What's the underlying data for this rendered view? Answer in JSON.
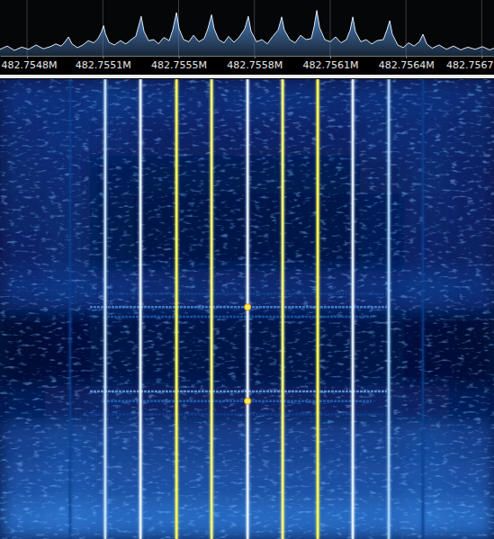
{
  "chart_data": [
    {
      "type": "area",
      "color": "#4f86c6",
      "grid": true,
      "tick_labels": "x",
      "xlim": [
        482.754695,
        482.756794
      ],
      "ylim": [
        0,
        1
      ],
      "xticks": [
        {
          "value": 482.75481,
          "label": "482.7548M"
        },
        {
          "value": 482.755132,
          "label": "482.7551M"
        },
        {
          "value": 482.755454,
          "label": "482.7555M"
        },
        {
          "value": 482.755776,
          "label": "482.7558M"
        },
        {
          "value": 482.756098,
          "label": "482.7561M"
        },
        {
          "value": 482.75642,
          "label": "482.7564M"
        },
        {
          "value": 482.756742,
          "label": "482.7567"
        }
      ],
      "x": [
        482.754695,
        482.754726,
        482.754756,
        482.754787,
        482.754817,
        482.754848,
        482.754879,
        482.754909,
        482.754932,
        482.754955,
        482.75497,
        482.754986,
        482.755001,
        482.755024,
        482.755047,
        482.75507,
        482.755093,
        482.755112,
        482.755127,
        482.755135,
        482.755142,
        482.755158,
        482.755181,
        482.755207,
        482.75523,
        482.755253,
        482.755272,
        482.755284,
        482.755295,
        482.755307,
        482.755326,
        482.755349,
        482.755368,
        482.755391,
        482.755414,
        482.755429,
        482.755445,
        482.755456,
        482.755475,
        482.755498,
        482.755517,
        482.75554,
        482.755563,
        482.755578,
        482.755594,
        482.755605,
        482.755624,
        482.755647,
        482.755666,
        482.755689,
        482.755712,
        482.755735,
        482.75575,
        482.755762,
        482.755785,
        482.755808,
        482.755831,
        482.755854,
        482.755877,
        482.755892,
        482.755903,
        482.755926,
        482.755949,
        482.755972,
        482.755995,
        482.756018,
        482.75603,
        482.756041,
        482.756053,
        482.756075,
        482.756098,
        482.756121,
        482.756144,
        482.756167,
        482.756183,
        482.756194,
        482.756205,
        482.756228,
        482.756251,
        482.756274,
        482.756297,
        482.756324,
        482.756339,
        482.756351,
        482.756362,
        482.756385,
        482.756408,
        482.756431,
        482.756454,
        482.756477,
        482.756492,
        482.756508,
        482.756531,
        482.756561,
        482.756592,
        482.756622,
        482.756653,
        482.756683,
        482.756714,
        482.756745,
        482.756775,
        482.756794
      ],
      "values": [
        0.12,
        0.18,
        0.1,
        0.16,
        0.12,
        0.2,
        0.13,
        0.17,
        0.22,
        0.18,
        0.25,
        0.35,
        0.22,
        0.15,
        0.2,
        0.28,
        0.24,
        0.32,
        0.45,
        0.56,
        0.42,
        0.25,
        0.2,
        0.28,
        0.22,
        0.3,
        0.36,
        0.55,
        0.73,
        0.45,
        0.28,
        0.3,
        0.22,
        0.34,
        0.28,
        0.48,
        0.8,
        0.5,
        0.3,
        0.26,
        0.38,
        0.26,
        0.32,
        0.5,
        0.76,
        0.5,
        0.3,
        0.24,
        0.36,
        0.25,
        0.35,
        0.5,
        0.73,
        0.45,
        0.26,
        0.3,
        0.22,
        0.36,
        0.48,
        0.72,
        0.48,
        0.3,
        0.24,
        0.38,
        0.3,
        0.32,
        0.55,
        0.84,
        0.52,
        0.3,
        0.26,
        0.35,
        0.24,
        0.3,
        0.48,
        0.72,
        0.45,
        0.26,
        0.3,
        0.22,
        0.28,
        0.3,
        0.48,
        0.65,
        0.4,
        0.2,
        0.15,
        0.24,
        0.18,
        0.26,
        0.4,
        0.22,
        0.14,
        0.2,
        0.12,
        0.18,
        0.11,
        0.16,
        0.12,
        0.17,
        0.11,
        0.14
      ]
    },
    {
      "type": "waterfall",
      "tick_labels": false,
      "xlim": [
        482.754695,
        482.756794
      ],
      "ylim": [
        0,
        12
      ],
      "zlim": [
        0,
        1
      ],
      "cells": [
        [
          0.3,
          0.3,
          0.32,
          0.3,
          0.28,
          0.3,
          0.3,
          0.28,
          0.3,
          0.3,
          0.28
        ],
        [
          0.28,
          0.3,
          0.28,
          0.25,
          0.25,
          0.25,
          0.25,
          0.25,
          0.28,
          0.28,
          0.26
        ],
        [
          0.27,
          0.28,
          0.22,
          0.2,
          0.2,
          0.2,
          0.2,
          0.2,
          0.24,
          0.27,
          0.25
        ],
        [
          0.26,
          0.27,
          0.2,
          0.18,
          0.18,
          0.18,
          0.18,
          0.18,
          0.22,
          0.26,
          0.25
        ],
        [
          0.25,
          0.27,
          0.2,
          0.18,
          0.18,
          0.18,
          0.18,
          0.18,
          0.22,
          0.25,
          0.24
        ],
        [
          0.3,
          0.32,
          0.3,
          0.28,
          0.28,
          0.28,
          0.28,
          0.28,
          0.3,
          0.32,
          0.3
        ],
        [
          0.12,
          0.15,
          0.18,
          0.18,
          0.18,
          0.18,
          0.18,
          0.18,
          0.18,
          0.14,
          0.12
        ],
        [
          0.12,
          0.14,
          0.18,
          0.18,
          0.18,
          0.18,
          0.18,
          0.18,
          0.18,
          0.14,
          0.12
        ],
        [
          0.22,
          0.24,
          0.26,
          0.24,
          0.24,
          0.24,
          0.24,
          0.24,
          0.26,
          0.24,
          0.22
        ],
        [
          0.35,
          0.38,
          0.36,
          0.35,
          0.35,
          0.35,
          0.35,
          0.35,
          0.36,
          0.38,
          0.35
        ],
        [
          0.4,
          0.42,
          0.4,
          0.4,
          0.4,
          0.4,
          0.4,
          0.4,
          0.4,
          0.42,
          0.4
        ],
        [
          0.48,
          0.5,
          0.48,
          0.48,
          0.48,
          0.48,
          0.48,
          0.48,
          0.48,
          0.5,
          0.48
        ]
      ],
      "carriers": {
        "x": [
          482.754993,
          482.755142,
          482.755292,
          482.755445,
          482.755594,
          482.755747,
          482.755896,
          482.756045,
          482.756194,
          482.756347,
          482.756492
        ],
        "values": [
          0.35,
          0.8,
          0.85,
          1.0,
          0.97,
          0.85,
          0.97,
          1.0,
          0.85,
          0.75,
          0.35
        ]
      },
      "bursts": {
        "y": [
          5.6,
          5.95,
          6.2,
          8.15,
          8.4,
          8.75
        ],
        "x0": [
          482.755077,
          482.755077,
          482.755135,
          482.755077,
          482.755135,
          482.755077
        ],
        "x1": [
          482.756339,
          482.756339,
          482.756274,
          482.756339,
          482.756274,
          482.756339
        ],
        "values": [
          0.35,
          0.55,
          0.42,
          0.6,
          0.45,
          0.35
        ]
      },
      "hotspots": {
        "x": [
          482.755747,
          482.755747
        ],
        "y": [
          5.95,
          8.4
        ],
        "values": [
          1.0,
          1.0
        ]
      }
    }
  ]
}
